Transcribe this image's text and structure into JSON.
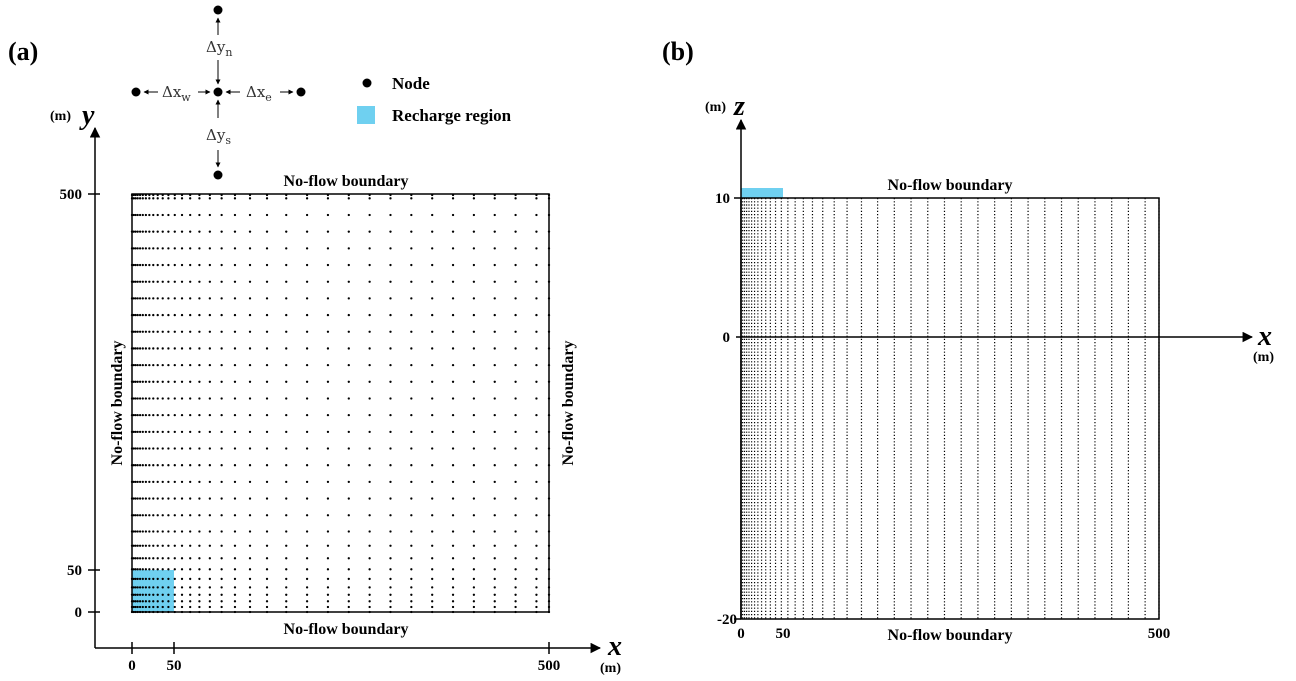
{
  "panel_a": {
    "label": "(a)",
    "top_boundary": "No-flow boundary",
    "bottom_boundary": "No-flow boundary",
    "left_boundary": "No-flow boundary",
    "right_boundary": "No-flow boundary",
    "x_axis": {
      "symbol": "x",
      "unit": "(m)",
      "ticks": [
        "0",
        "50",
        "500"
      ]
    },
    "y_axis": {
      "symbol": "y",
      "unit": "(m)",
      "ticks": [
        "500",
        "50",
        "0"
      ]
    },
    "stencil": {
      "dy_n": "Δy",
      "dy_n_sub": "n",
      "dy_s": "Δy",
      "dy_s_sub": "s",
      "dx_w": "Δx",
      "dx_w_sub": "w",
      "dx_e": "Δx",
      "dx_e_sub": "e"
    },
    "legend": {
      "node": "Node",
      "recharge": "Recharge region"
    }
  },
  "panel_b": {
    "label": "(b)",
    "top_boundary": "No-flow boundary",
    "bottom_boundary": "No-flow boundary",
    "x_axis": {
      "symbol": "x",
      "unit": "(m)",
      "ticks": [
        "0",
        "50",
        "500"
      ]
    },
    "z_axis": {
      "symbol": "z",
      "unit": "(m)",
      "ticks": [
        "10",
        "0",
        "-20"
      ]
    }
  },
  "colors": {
    "recharge": "#6fd0f0",
    "node": "#000000",
    "line": "#000000"
  },
  "grid": {
    "domain_m": 500,
    "recharge_extent_m": 50,
    "depth_top_m": 10,
    "depth_bottom_m": -20
  }
}
